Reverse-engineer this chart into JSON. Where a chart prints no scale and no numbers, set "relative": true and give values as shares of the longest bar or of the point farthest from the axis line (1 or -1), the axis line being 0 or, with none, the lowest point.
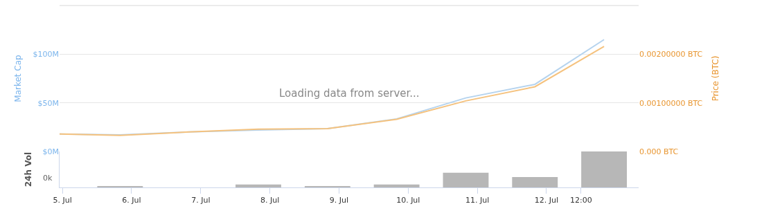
{
  "chart_data": [
    {
      "type": "line",
      "ylabel": "Market Cap",
      "y2label": "Price (BTC)",
      "annotations": [
        "Loading data from server..."
      ],
      "x": [
        "--07-04T23:00",
        "--07-05T20:00",
        "--07-06T20:00",
        "--07-07T20:00",
        "--07-08T20:00",
        "--07-09T20:00",
        "--07-10T20:00",
        "--07-11T20:00",
        "--07-12T20:00"
      ],
      "series": [
        {
          "color": "#b5d3ee",
          "values": [
            18000000,
            17000000,
            20000000,
            22000000,
            23500000,
            33500000,
            55000000,
            69000000,
            115000000
          ]
        },
        {
          "color": "#f5c27e",
          "axis": "y2",
          "values": [
            0.00036,
            0.00033,
            0.0004,
            0.00046,
            0.00047,
            0.00066,
            0.00104,
            0.00133,
            0.00216
          ]
        }
      ],
      "xlim": [
        "--07-04T23:00",
        "--07-13T08:00"
      ],
      "ylim": [
        0,
        150000000
      ],
      "yticks": [
        {
          "value": 0,
          "label": "$0M"
        },
        {
          "value": 50000000,
          "label": "$50M"
        },
        {
          "value": 100000000,
          "label": "$100M"
        }
      ],
      "y2lim": [
        0,
        0.003
      ],
      "y2ticks": [
        {
          "value": 0,
          "label": "0.000 BTC"
        },
        {
          "value": 0.001,
          "label": "0.00100000 BTC"
        },
        {
          "value": 0.002,
          "label": "0.00200000 BTC"
        }
      ],
      "grid": "y",
      "tick_labels": "y"
    },
    {
      "type": "bar",
      "ylabel": "24h Vol",
      "relative": true,
      "x": [
        "--07-05T20:00",
        "--07-06T20:00",
        "--07-07T20:00",
        "--07-08T20:00",
        "--07-09T20:00",
        "--07-10T20:00",
        "--07-11T20:00",
        "--07-12T20:00"
      ],
      "values": [
        0.02,
        0,
        0.08,
        0.03,
        0.08,
        0.41,
        0.29,
        1
      ],
      "color": "#b7b7b7",
      "annotations": [
        "0k"
      ],
      "xlim": [
        "--07-04T23:00",
        "--07-13T08:00"
      ],
      "xticks": [
        {
          "value": "--07-05",
          "label": "5. Jul"
        },
        {
          "value": "--07-06",
          "label": "6. Jul"
        },
        {
          "value": "--07-07",
          "label": "7. Jul"
        },
        {
          "value": "--07-08",
          "label": "8. Jul"
        },
        {
          "value": "--07-09",
          "label": "9. Jul"
        },
        {
          "value": "--07-10",
          "label": "10. Jul"
        },
        {
          "value": "--07-11",
          "label": "11. Jul"
        },
        {
          "value": "--07-12",
          "label": "12. Jul"
        },
        {
          "value": "--07-12T12:00",
          "label": "12:00"
        }
      ]
    }
  ]
}
